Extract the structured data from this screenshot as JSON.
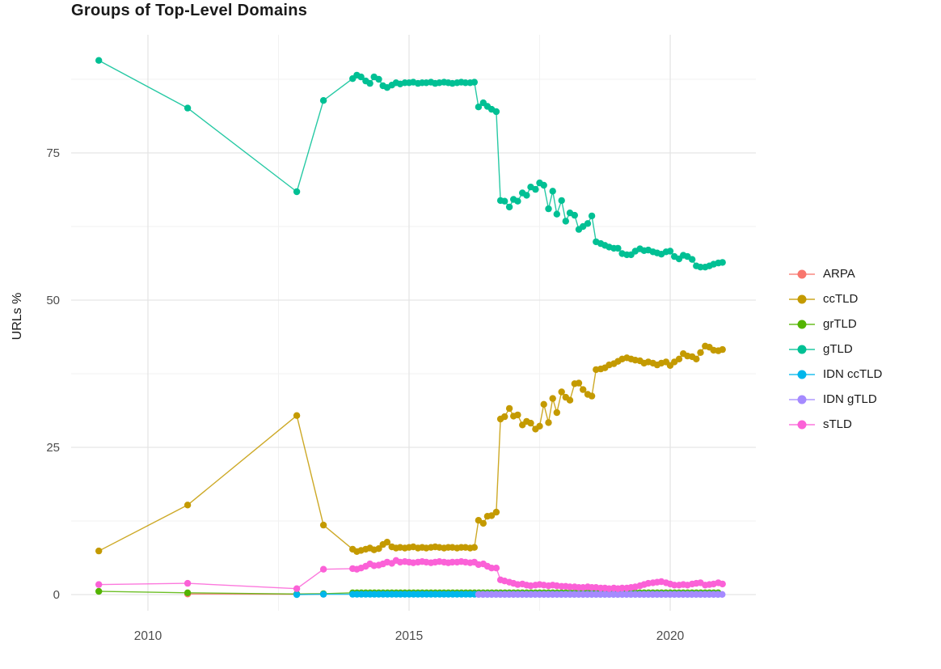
{
  "chart_data": {
    "type": "line",
    "title": "Groups of Top-Level Domains",
    "xlabel": "",
    "ylabel": "URLs %",
    "xlim": [
      2008.53,
      2021.64
    ],
    "ylim": [
      -2.75,
      95.05
    ],
    "x_ticks": [
      {
        "value": 2010,
        "label": "2010"
      },
      {
        "value": 2015,
        "label": "2015"
      },
      {
        "value": 2020,
        "label": "2020"
      }
    ],
    "x_minor_ticks": [
      2012.5,
      2017.5
    ],
    "y_ticks": [
      {
        "value": 0,
        "label": "0"
      },
      {
        "value": 25,
        "label": "25"
      },
      {
        "value": 50,
        "label": "50"
      },
      {
        "value": 75,
        "label": "75"
      }
    ],
    "y_minor_ticks": [
      12.5,
      37.5,
      62.5,
      87.5
    ],
    "grid": {
      "major_color": "#e5e5e5",
      "minor_color": "#f2f2f2"
    },
    "legend_position": "right",
    "marker_radius": 4.2,
    "line_width": 1.4,
    "series": [
      {
        "name": "ARPA",
        "color": "#F8766D",
        "points": [
          [
            2010.76,
            0.1
          ],
          [
            2012.85,
            0.06
          ],
          [
            2013.36,
            0.06
          ]
        ]
      },
      {
        "name": "ccTLD",
        "color": "#C49A00",
        "points": [
          [
            2009.06,
            7.4
          ],
          [
            2010.76,
            15.2
          ],
          [
            2012.85,
            30.4
          ],
          [
            2013.36,
            11.8
          ],
          [
            2013.92,
            7.7
          ],
          [
            2014.0,
            7.3
          ],
          [
            2014.08,
            7.5
          ],
          [
            2014.17,
            7.7
          ],
          [
            2014.25,
            7.9
          ],
          [
            2014.33,
            7.6
          ],
          [
            2014.42,
            7.8
          ],
          [
            2014.5,
            8.5
          ],
          [
            2014.58,
            8.9
          ],
          [
            2014.67,
            8.1
          ],
          [
            2014.75,
            7.9
          ],
          [
            2014.83,
            8.0
          ],
          [
            2014.92,
            7.9
          ],
          [
            2015.0,
            8.0
          ],
          [
            2015.08,
            8.1
          ],
          [
            2015.17,
            7.9
          ],
          [
            2015.25,
            8.0
          ],
          [
            2015.33,
            7.9
          ],
          [
            2015.42,
            8.0
          ],
          [
            2015.5,
            8.1
          ],
          [
            2015.58,
            8.0
          ],
          [
            2015.67,
            7.9
          ],
          [
            2015.75,
            8.0
          ],
          [
            2015.83,
            8.0
          ],
          [
            2015.92,
            7.9
          ],
          [
            2016.0,
            8.0
          ],
          [
            2016.08,
            8.0
          ],
          [
            2016.17,
            7.9
          ],
          [
            2016.25,
            8.0
          ],
          [
            2016.33,
            12.6
          ],
          [
            2016.42,
            12.1
          ],
          [
            2016.5,
            13.3
          ],
          [
            2016.58,
            13.4
          ],
          [
            2016.67,
            14.0
          ],
          [
            2016.75,
            29.8
          ],
          [
            2016.83,
            30.2
          ],
          [
            2016.92,
            31.6
          ],
          [
            2017.0,
            30.3
          ],
          [
            2017.08,
            30.5
          ],
          [
            2017.17,
            28.8
          ],
          [
            2017.25,
            29.4
          ],
          [
            2017.33,
            29.1
          ],
          [
            2017.42,
            28.1
          ],
          [
            2017.5,
            28.6
          ],
          [
            2017.58,
            32.3
          ],
          [
            2017.67,
            29.2
          ],
          [
            2017.75,
            33.3
          ],
          [
            2017.83,
            30.9
          ],
          [
            2017.92,
            34.4
          ],
          [
            2018.0,
            33.5
          ],
          [
            2018.08,
            33.0
          ],
          [
            2018.17,
            35.8
          ],
          [
            2018.25,
            35.9
          ],
          [
            2018.33,
            34.8
          ],
          [
            2018.42,
            34.0
          ],
          [
            2018.5,
            33.7
          ],
          [
            2018.58,
            38.2
          ],
          [
            2018.67,
            38.3
          ],
          [
            2018.75,
            38.5
          ],
          [
            2018.83,
            39.0
          ],
          [
            2018.92,
            39.2
          ],
          [
            2019.0,
            39.6
          ],
          [
            2019.08,
            40.0
          ],
          [
            2019.17,
            40.2
          ],
          [
            2019.25,
            40.0
          ],
          [
            2019.33,
            39.8
          ],
          [
            2019.42,
            39.7
          ],
          [
            2019.5,
            39.3
          ],
          [
            2019.58,
            39.5
          ],
          [
            2019.67,
            39.3
          ],
          [
            2019.75,
            39.0
          ],
          [
            2019.83,
            39.3
          ],
          [
            2019.92,
            39.5
          ],
          [
            2020.0,
            38.9
          ],
          [
            2020.08,
            39.5
          ],
          [
            2020.17,
            40.0
          ],
          [
            2020.25,
            40.9
          ],
          [
            2020.33,
            40.5
          ],
          [
            2020.42,
            40.4
          ],
          [
            2020.5,
            40.0
          ],
          [
            2020.58,
            41.1
          ],
          [
            2020.67,
            42.2
          ],
          [
            2020.75,
            42.0
          ],
          [
            2020.83,
            41.5
          ],
          [
            2020.92,
            41.4
          ],
          [
            2021.0,
            41.6
          ]
        ]
      },
      {
        "name": "grTLD",
        "color": "#53B400",
        "points": [
          [
            2009.06,
            0.55
          ],
          [
            2010.76,
            0.3
          ],
          [
            2012.85,
            0.1
          ],
          [
            2013.36,
            0.15
          ]
        ],
        "span": {
          "x0": 2013.92,
          "x1": 2021.0,
          "step": 0.0833,
          "y": 0.3
        }
      },
      {
        "name": "gTLD",
        "color": "#00C094",
        "points": [
          [
            2009.06,
            90.7
          ],
          [
            2010.76,
            82.6
          ],
          [
            2012.85,
            68.4
          ],
          [
            2013.36,
            83.9
          ],
          [
            2013.92,
            87.6
          ],
          [
            2014.0,
            88.2
          ],
          [
            2014.08,
            87.9
          ],
          [
            2014.17,
            87.2
          ],
          [
            2014.25,
            86.8
          ],
          [
            2014.33,
            87.9
          ],
          [
            2014.42,
            87.5
          ],
          [
            2014.5,
            86.4
          ],
          [
            2014.58,
            86.1
          ],
          [
            2014.67,
            86.5
          ],
          [
            2014.75,
            86.9
          ],
          [
            2014.83,
            86.7
          ],
          [
            2014.92,
            86.9
          ],
          [
            2015.0,
            86.9
          ],
          [
            2015.08,
            87.0
          ],
          [
            2015.17,
            86.8
          ],
          [
            2015.25,
            86.9
          ],
          [
            2015.33,
            86.9
          ],
          [
            2015.42,
            87.0
          ],
          [
            2015.5,
            86.8
          ],
          [
            2015.58,
            86.9
          ],
          [
            2015.67,
            87.0
          ],
          [
            2015.75,
            86.9
          ],
          [
            2015.83,
            86.8
          ],
          [
            2015.92,
            86.9
          ],
          [
            2016.0,
            87.0
          ],
          [
            2016.08,
            86.9
          ],
          [
            2016.17,
            86.9
          ],
          [
            2016.25,
            87.0
          ],
          [
            2016.33,
            82.8
          ],
          [
            2016.42,
            83.5
          ],
          [
            2016.5,
            82.9
          ],
          [
            2016.58,
            82.4
          ],
          [
            2016.67,
            82.0
          ],
          [
            2016.75,
            66.9
          ],
          [
            2016.83,
            66.8
          ],
          [
            2016.92,
            65.8
          ],
          [
            2017.0,
            67.1
          ],
          [
            2017.08,
            66.8
          ],
          [
            2017.17,
            68.2
          ],
          [
            2017.25,
            67.8
          ],
          [
            2017.33,
            69.2
          ],
          [
            2017.42,
            68.8
          ],
          [
            2017.5,
            69.9
          ],
          [
            2017.58,
            69.5
          ],
          [
            2017.67,
            65.5
          ],
          [
            2017.75,
            68.5
          ],
          [
            2017.83,
            64.6
          ],
          [
            2017.92,
            66.9
          ],
          [
            2018.0,
            63.4
          ],
          [
            2018.08,
            64.8
          ],
          [
            2018.17,
            64.4
          ],
          [
            2018.25,
            62.0
          ],
          [
            2018.33,
            62.5
          ],
          [
            2018.42,
            63.0
          ],
          [
            2018.5,
            64.3
          ],
          [
            2018.58,
            59.9
          ],
          [
            2018.67,
            59.6
          ],
          [
            2018.75,
            59.3
          ],
          [
            2018.83,
            59.0
          ],
          [
            2018.92,
            58.8
          ],
          [
            2019.0,
            58.8
          ],
          [
            2019.08,
            57.9
          ],
          [
            2019.17,
            57.7
          ],
          [
            2019.25,
            57.7
          ],
          [
            2019.33,
            58.3
          ],
          [
            2019.42,
            58.7
          ],
          [
            2019.5,
            58.4
          ],
          [
            2019.58,
            58.5
          ],
          [
            2019.67,
            58.2
          ],
          [
            2019.75,
            58.0
          ],
          [
            2019.83,
            57.8
          ],
          [
            2019.92,
            58.2
          ],
          [
            2020.0,
            58.3
          ],
          [
            2020.08,
            57.4
          ],
          [
            2020.17,
            57.0
          ],
          [
            2020.25,
            57.6
          ],
          [
            2020.33,
            57.4
          ],
          [
            2020.42,
            56.9
          ],
          [
            2020.5,
            55.8
          ],
          [
            2020.58,
            55.6
          ],
          [
            2020.67,
            55.6
          ],
          [
            2020.75,
            55.8
          ],
          [
            2020.83,
            56.1
          ],
          [
            2020.92,
            56.3
          ],
          [
            2021.0,
            56.4
          ]
        ]
      },
      {
        "name": "IDN ccTLD",
        "color": "#00B6EB",
        "points": [
          [
            2012.85,
            0.0
          ],
          [
            2013.36,
            0.05
          ]
        ],
        "span": {
          "x0": 2013.92,
          "x1": 2021.0,
          "step": 0.0833,
          "y": 0.05
        }
      },
      {
        "name": "IDN gTLD",
        "color": "#A58AFF",
        "points": [],
        "span": {
          "x0": 2016.33,
          "x1": 2021.0,
          "step": 0.0833,
          "y": 0.02
        }
      },
      {
        "name": "sTLD",
        "color": "#FB61D7",
        "points": [
          [
            2009.06,
            1.7
          ],
          [
            2010.76,
            1.9
          ],
          [
            2012.85,
            1.0
          ],
          [
            2013.36,
            4.3
          ],
          [
            2013.92,
            4.4
          ],
          [
            2014.0,
            4.3
          ],
          [
            2014.08,
            4.5
          ],
          [
            2014.17,
            4.8
          ],
          [
            2014.25,
            5.2
          ],
          [
            2014.33,
            4.9
          ],
          [
            2014.42,
            5.0
          ],
          [
            2014.5,
            5.2
          ],
          [
            2014.58,
            5.5
          ],
          [
            2014.67,
            5.3
          ],
          [
            2014.75,
            5.8
          ],
          [
            2014.83,
            5.5
          ],
          [
            2014.92,
            5.6
          ],
          [
            2015.0,
            5.5
          ],
          [
            2015.08,
            5.4
          ],
          [
            2015.17,
            5.5
          ],
          [
            2015.25,
            5.6
          ],
          [
            2015.33,
            5.5
          ],
          [
            2015.42,
            5.4
          ],
          [
            2015.5,
            5.5
          ],
          [
            2015.58,
            5.6
          ],
          [
            2015.67,
            5.5
          ],
          [
            2015.75,
            5.4
          ],
          [
            2015.83,
            5.5
          ],
          [
            2015.92,
            5.5
          ],
          [
            2016.0,
            5.6
          ],
          [
            2016.08,
            5.5
          ],
          [
            2016.17,
            5.4
          ],
          [
            2016.25,
            5.5
          ],
          [
            2016.33,
            5.1
          ],
          [
            2016.42,
            5.2
          ],
          [
            2016.5,
            4.8
          ],
          [
            2016.58,
            4.5
          ],
          [
            2016.67,
            4.5
          ],
          [
            2016.75,
            2.5
          ],
          [
            2016.83,
            2.3
          ],
          [
            2016.92,
            2.1
          ],
          [
            2017.0,
            1.9
          ],
          [
            2017.08,
            1.7
          ],
          [
            2017.17,
            1.8
          ],
          [
            2017.25,
            1.6
          ],
          [
            2017.33,
            1.5
          ],
          [
            2017.42,
            1.6
          ],
          [
            2017.5,
            1.7
          ],
          [
            2017.58,
            1.6
          ],
          [
            2017.67,
            1.5
          ],
          [
            2017.75,
            1.6
          ],
          [
            2017.83,
            1.5
          ],
          [
            2017.92,
            1.4
          ],
          [
            2018.0,
            1.4
          ],
          [
            2018.08,
            1.3
          ],
          [
            2018.17,
            1.3
          ],
          [
            2018.25,
            1.2
          ],
          [
            2018.33,
            1.2
          ],
          [
            2018.42,
            1.3
          ],
          [
            2018.5,
            1.2
          ],
          [
            2018.58,
            1.2
          ],
          [
            2018.67,
            1.1
          ],
          [
            2018.75,
            1.1
          ],
          [
            2018.83,
            1.0
          ],
          [
            2018.92,
            1.1
          ],
          [
            2019.0,
            1.0
          ],
          [
            2019.08,
            1.1
          ],
          [
            2019.17,
            1.1
          ],
          [
            2019.25,
            1.2
          ],
          [
            2019.33,
            1.3
          ],
          [
            2019.42,
            1.5
          ],
          [
            2019.5,
            1.7
          ],
          [
            2019.58,
            1.9
          ],
          [
            2019.67,
            2.0
          ],
          [
            2019.75,
            2.1
          ],
          [
            2019.83,
            2.2
          ],
          [
            2019.92,
            2.0
          ],
          [
            2020.0,
            1.8
          ],
          [
            2020.08,
            1.6
          ],
          [
            2020.17,
            1.6
          ],
          [
            2020.25,
            1.7
          ],
          [
            2020.33,
            1.6
          ],
          [
            2020.42,
            1.8
          ],
          [
            2020.5,
            1.9
          ],
          [
            2020.58,
            2.0
          ],
          [
            2020.67,
            1.6
          ],
          [
            2020.75,
            1.7
          ],
          [
            2020.83,
            1.8
          ],
          [
            2020.92,
            2.0
          ],
          [
            2021.0,
            1.8
          ]
        ]
      }
    ]
  }
}
